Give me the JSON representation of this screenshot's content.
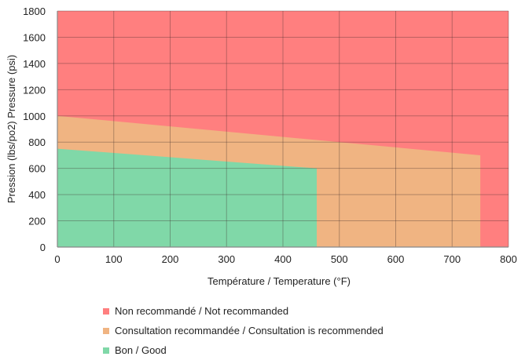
{
  "chart_data": {
    "type": "area",
    "title": "",
    "xlabel": "Température / Temperature (°F)",
    "ylabel": "Pression (lbs/po2) Pressure (psi)",
    "xlim": [
      0,
      800
    ],
    "ylim": [
      0,
      1800
    ],
    "xticks": [
      0,
      100,
      200,
      300,
      400,
      500,
      600,
      700,
      800
    ],
    "yticks": [
      0,
      200,
      400,
      600,
      800,
      1000,
      1200,
      1400,
      1600,
      1800
    ],
    "grid": true,
    "legend_position": "bottom",
    "series": [
      {
        "name": "Non recommandé / Not recommanded",
        "color": "#FF7F7F",
        "points": [
          [
            0,
            1800
          ],
          [
            800,
            1800
          ]
        ]
      },
      {
        "name": "Consultation recommandée / Consultation is recommended",
        "color": "#F0B482",
        "points": [
          [
            0,
            1000
          ],
          [
            750,
            700
          ]
        ]
      },
      {
        "name": "Bon / Good",
        "color": "#80D8A8",
        "points": [
          [
            0,
            750
          ],
          [
            460,
            600
          ]
        ]
      }
    ]
  }
}
